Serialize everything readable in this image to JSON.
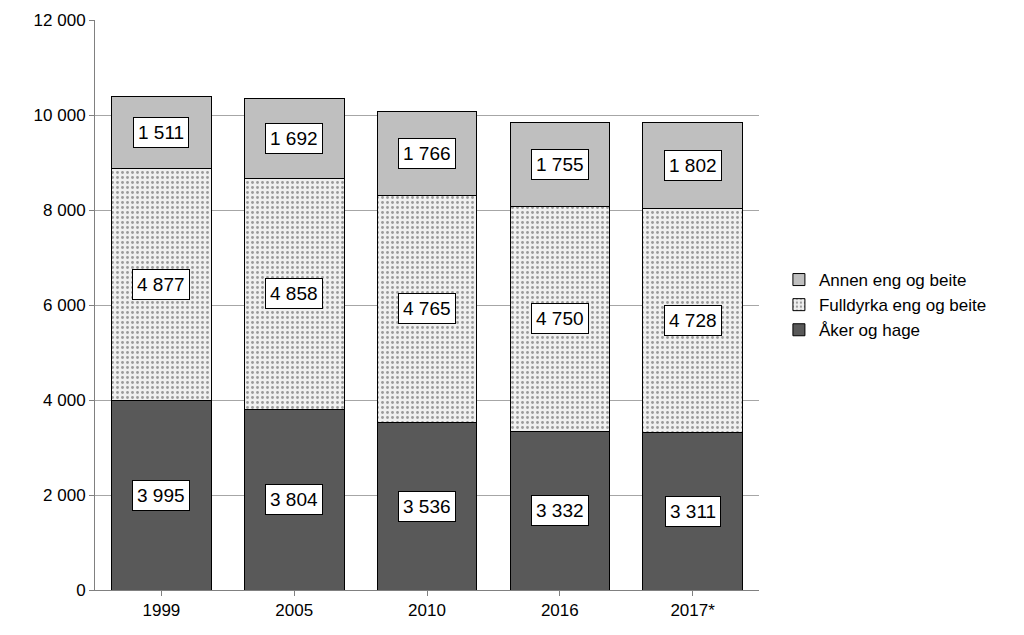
{
  "chart_data": {
    "type": "bar",
    "stacked": true,
    "categories": [
      "1999",
      "2005",
      "2010",
      "2016",
      "2017*"
    ],
    "series": [
      {
        "name": "Åker og hage",
        "color": "#595959",
        "values": [
          3995,
          3804,
          3536,
          3332,
          3311
        ],
        "value_labels": [
          "3 995",
          "3 804",
          "3 536",
          "3 332",
          "3 311"
        ]
      },
      {
        "name": "Fulldyrka eng og beite",
        "color": "#f0f0f0",
        "marker": "dotted",
        "values": [
          4877,
          4858,
          4765,
          4750,
          4728
        ],
        "value_labels": [
          "4 877",
          "4 858",
          "4 765",
          "4 750",
          "4 728"
        ]
      },
      {
        "name": "Annen eng og beite",
        "color": "#bfbfbf",
        "values": [
          1511,
          1692,
          1766,
          1755,
          1802
        ],
        "value_labels": [
          "1 511",
          "1 692",
          "1 766",
          "1 755",
          "1 802"
        ]
      }
    ],
    "ylim": [
      0,
      12000
    ],
    "yticks": [
      0,
      {
        "value": 2000,
        "label": "2 000"
      },
      {
        "value": 4000,
        "label": "4 000"
      },
      {
        "value": 6000,
        "label": "6 000"
      },
      {
        "value": 8000,
        "label": "8 000"
      },
      {
        "value": 10000,
        "label": "10 000"
      },
      {
        "value": 12000,
        "label": "12 000"
      }
    ],
    "grid": true,
    "legend": "right",
    "data_labels": true
  }
}
